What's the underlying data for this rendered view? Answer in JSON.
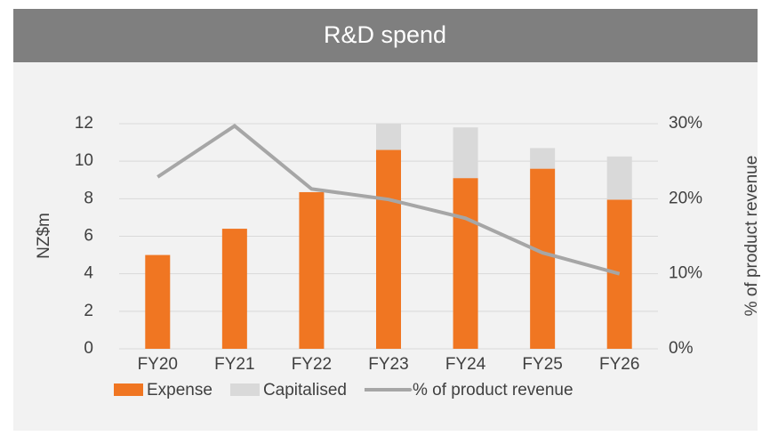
{
  "chart_data": {
    "type": "bar",
    "stacked": true,
    "title": "R&D spend",
    "y_label": "NZ$m",
    "y2_label": "% of product revenue",
    "categories": [
      "FY20",
      "FY21",
      "FY22",
      "FY23",
      "FY24",
      "FY25",
      "FY26"
    ],
    "series": [
      {
        "name": "Expense",
        "type": "bar",
        "color": "#f07622",
        "values": [
          5.0,
          6.4,
          8.35,
          10.6,
          9.1,
          9.6,
          7.95
        ]
      },
      {
        "name": "Capitalised",
        "type": "bar",
        "color": "#d9d9d9",
        "values": [
          0,
          0,
          0,
          1.4,
          2.7,
          1.1,
          2.3
        ]
      },
      {
        "name": "% of product revenue",
        "type": "line",
        "axis": "y2",
        "color": "#a6a6a6",
        "values": [
          22.9,
          29.7,
          21.3,
          19.9,
          17.4,
          12.8,
          10.0
        ]
      }
    ],
    "ylim": [
      0,
      12
    ],
    "yticks": [
      0,
      2,
      4,
      6,
      8,
      10,
      12
    ],
    "y2lim": [
      0,
      30
    ],
    "y2ticks": [
      {
        "value": 0,
        "label": "0%"
      },
      {
        "value": 10,
        "label": "10%"
      },
      {
        "value": 20,
        "label": "20%"
      },
      {
        "value": 30,
        "label": "30%"
      }
    ],
    "grid": true,
    "legend": "bottom"
  }
}
